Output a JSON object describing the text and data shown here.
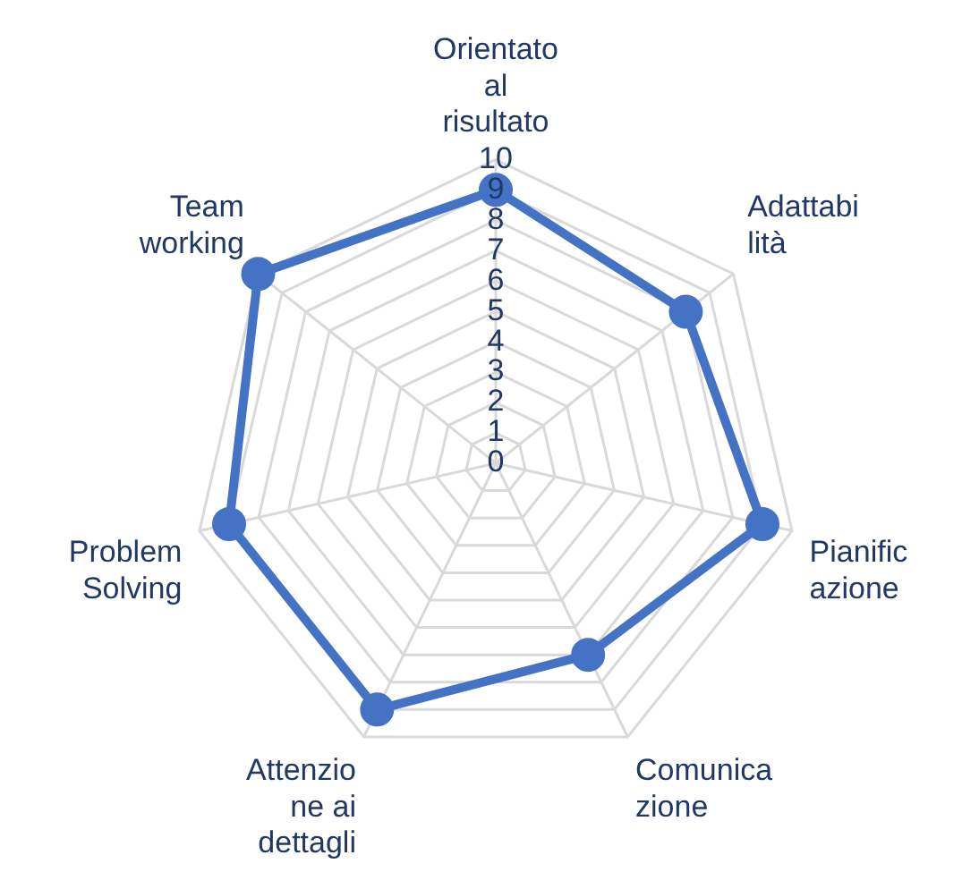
{
  "chart_data": {
    "type": "radar",
    "categories": [
      "Orientato al risultato",
      "Adattabilità",
      "Pianificazione",
      "Comunicazione",
      "Attenzione ai dettagli",
      "Problem Solving",
      "Team working"
    ],
    "series": [
      {
        "color": "#4472c4",
        "values": [
          9,
          8,
          9,
          7,
          9,
          9,
          10
        ]
      }
    ],
    "ylim": [
      0,
      10
    ],
    "yticks": [
      0,
      1,
      2,
      3,
      4,
      5,
      6,
      7,
      8,
      9,
      10
    ],
    "grid": true,
    "legend": false,
    "marker": "circle",
    "line_style": "solid"
  }
}
